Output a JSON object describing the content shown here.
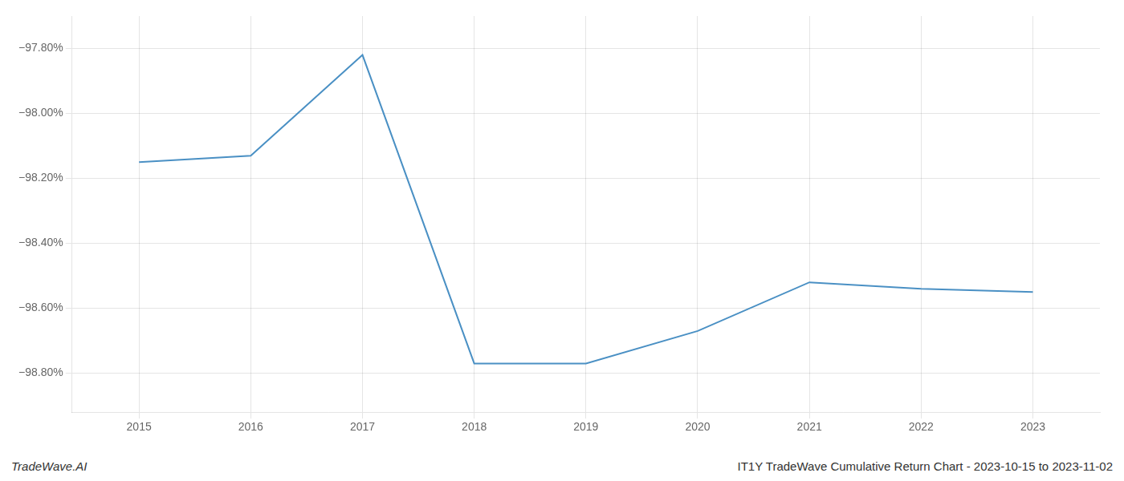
{
  "chart_data": {
    "type": "line",
    "x": [
      2015,
      2016,
      2017,
      2018,
      2019,
      2020,
      2021,
      2022,
      2023
    ],
    "values": [
      -98.15,
      -98.13,
      -97.82,
      -98.77,
      -98.77,
      -98.67,
      -98.52,
      -98.54,
      -98.55
    ],
    "color": "#4a90c4",
    "xlim": [
      2014.4,
      2023.6
    ],
    "xticks": [
      2015,
      2016,
      2017,
      2018,
      2019,
      2020,
      2021,
      2022,
      2023
    ],
    "ylim": [
      -98.92,
      -97.7
    ],
    "yticks": [
      {
        "value": -97.8,
        "label": "−97.80%"
      },
      {
        "value": -98.0,
        "label": "−98.00%"
      },
      {
        "value": -98.2,
        "label": "−98.20%"
      },
      {
        "value": -98.4,
        "label": "−98.40%"
      },
      {
        "value": -98.6,
        "label": "−98.60%"
      },
      {
        "value": -98.8,
        "label": "−98.80%"
      }
    ],
    "grid": true,
    "annotations": [
      "TradeWave.AI",
      "IT1Y TradeWave Cumulative Return Chart - 2023-10-15 to 2023-11-02"
    ]
  }
}
